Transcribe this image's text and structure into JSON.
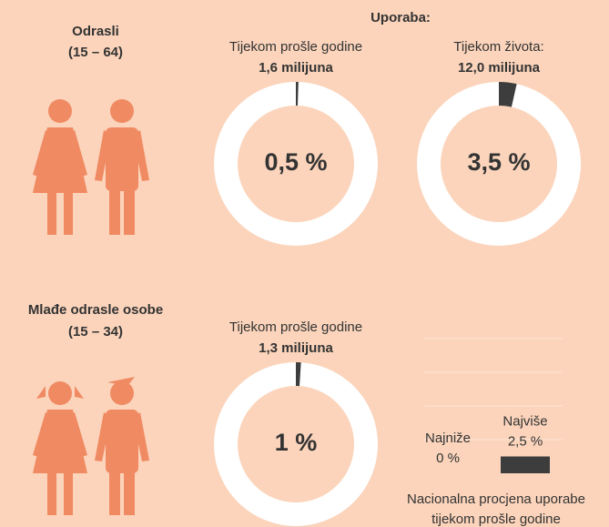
{
  "heading": "Uporaba:",
  "sections": [
    {
      "label": "Odrasli",
      "age": "(15 – 64)"
    },
    {
      "label": "Mlađe odrasle osobe",
      "age": "(15 – 34)"
    }
  ],
  "chart_data": [
    {
      "type": "pie",
      "title": "Tijekom prošle godine",
      "subtitle": "1,6 milijuna",
      "values": [
        0.5
      ],
      "value_labels": [
        "0,5 %"
      ],
      "color": "#3d3d3d"
    },
    {
      "type": "pie",
      "title": "Tijekom života:",
      "subtitle": "12,0 milijuna",
      "values": [
        3.5
      ],
      "value_labels": [
        "3,5 %"
      ],
      "color": "#3d3d3d"
    },
    {
      "type": "pie",
      "title": "Tijekom prošle godine",
      "subtitle": "1,3 milijuna",
      "values": [
        1
      ],
      "value_labels": [
        "1 %"
      ],
      "color": "#3d3d3d"
    },
    {
      "type": "bar",
      "title": "Nacionalna procjena uporabe tijekom prošle godine",
      "categories": [
        "Najniže",
        "Najviše"
      ],
      "values": [
        0,
        2.5
      ],
      "value_labels": [
        "0 %",
        "2,5 %"
      ],
      "color": "#3d3d3d",
      "ylim": [
        0,
        20
      ],
      "yticks": [
        5,
        10,
        15,
        20
      ],
      "grid": true
    }
  ]
}
